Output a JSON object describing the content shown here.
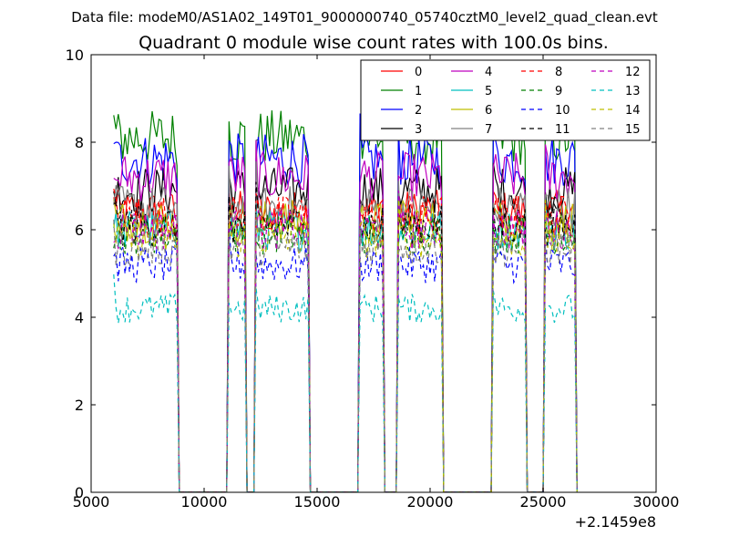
{
  "suptitle": "Data file: modeM0/AS1A02_149T01_9000000740_05740cztM0_level2_quad_clean.evt",
  "chart_data": {
    "type": "line",
    "title": "Quadrant 0 module wise count rates with 100.0s bins.",
    "xlabel": "",
    "ylabel": "",
    "x_offset_label": "+2.1459e8",
    "xlim": [
      5000,
      30000
    ],
    "ylim": [
      0,
      10
    ],
    "x_ticks": [
      5000,
      10000,
      15000,
      20000,
      25000,
      30000
    ],
    "x_tick_labels": [
      "5000",
      "10000",
      "15000",
      "20000",
      "25000",
      "30000"
    ],
    "y_ticks": [
      0,
      2,
      4,
      6,
      8,
      10
    ],
    "y_tick_labels": [
      "0",
      "2",
      "4",
      "6",
      "8",
      "10"
    ],
    "grid": false,
    "legend_position": "top-right",
    "segments": [
      [
        6000,
        8800
      ],
      [
        11100,
        11800
      ],
      [
        12300,
        14600
      ],
      [
        16900,
        17900
      ],
      [
        18600,
        20500
      ],
      [
        22800,
        24200
      ],
      [
        25100,
        26400
      ]
    ],
    "series": [
      {
        "name": "0",
        "color": "#ff0000",
        "style": "solid",
        "level": 6.4
      },
      {
        "name": "1",
        "color": "#008000",
        "style": "solid",
        "level": 8.1
      },
      {
        "name": "2",
        "color": "#0000ff",
        "style": "solid",
        "level": 7.6
      },
      {
        "name": "3",
        "color": "#000000",
        "style": "solid",
        "level": 6.9
      },
      {
        "name": "4",
        "color": "#bf00bf",
        "style": "solid",
        "level": 7.2
      },
      {
        "name": "5",
        "color": "#00bfbf",
        "style": "solid",
        "level": 6.0
      },
      {
        "name": "6",
        "color": "#bfbf00",
        "style": "solid",
        "level": 6.2
      },
      {
        "name": "7",
        "color": "#808080",
        "style": "solid",
        "level": 6.5
      },
      {
        "name": "8",
        "color": "#ff0000",
        "style": "dashed",
        "level": 6.3
      },
      {
        "name": "9",
        "color": "#008000",
        "style": "dashed",
        "level": 5.9
      },
      {
        "name": "10",
        "color": "#0000ff",
        "style": "dashed",
        "level": 5.2
      },
      {
        "name": "11",
        "color": "#000000",
        "style": "dashed",
        "level": 6.1
      },
      {
        "name": "12",
        "color": "#bf00bf",
        "style": "dashed",
        "level": 6.0
      },
      {
        "name": "13",
        "color": "#00bfbf",
        "style": "dashed",
        "level": 4.2
      },
      {
        "name": "14",
        "color": "#bfbf00",
        "style": "dashed",
        "level": 5.8
      },
      {
        "name": "15",
        "color": "#808080",
        "style": "dashed",
        "level": 5.6
      }
    ]
  }
}
